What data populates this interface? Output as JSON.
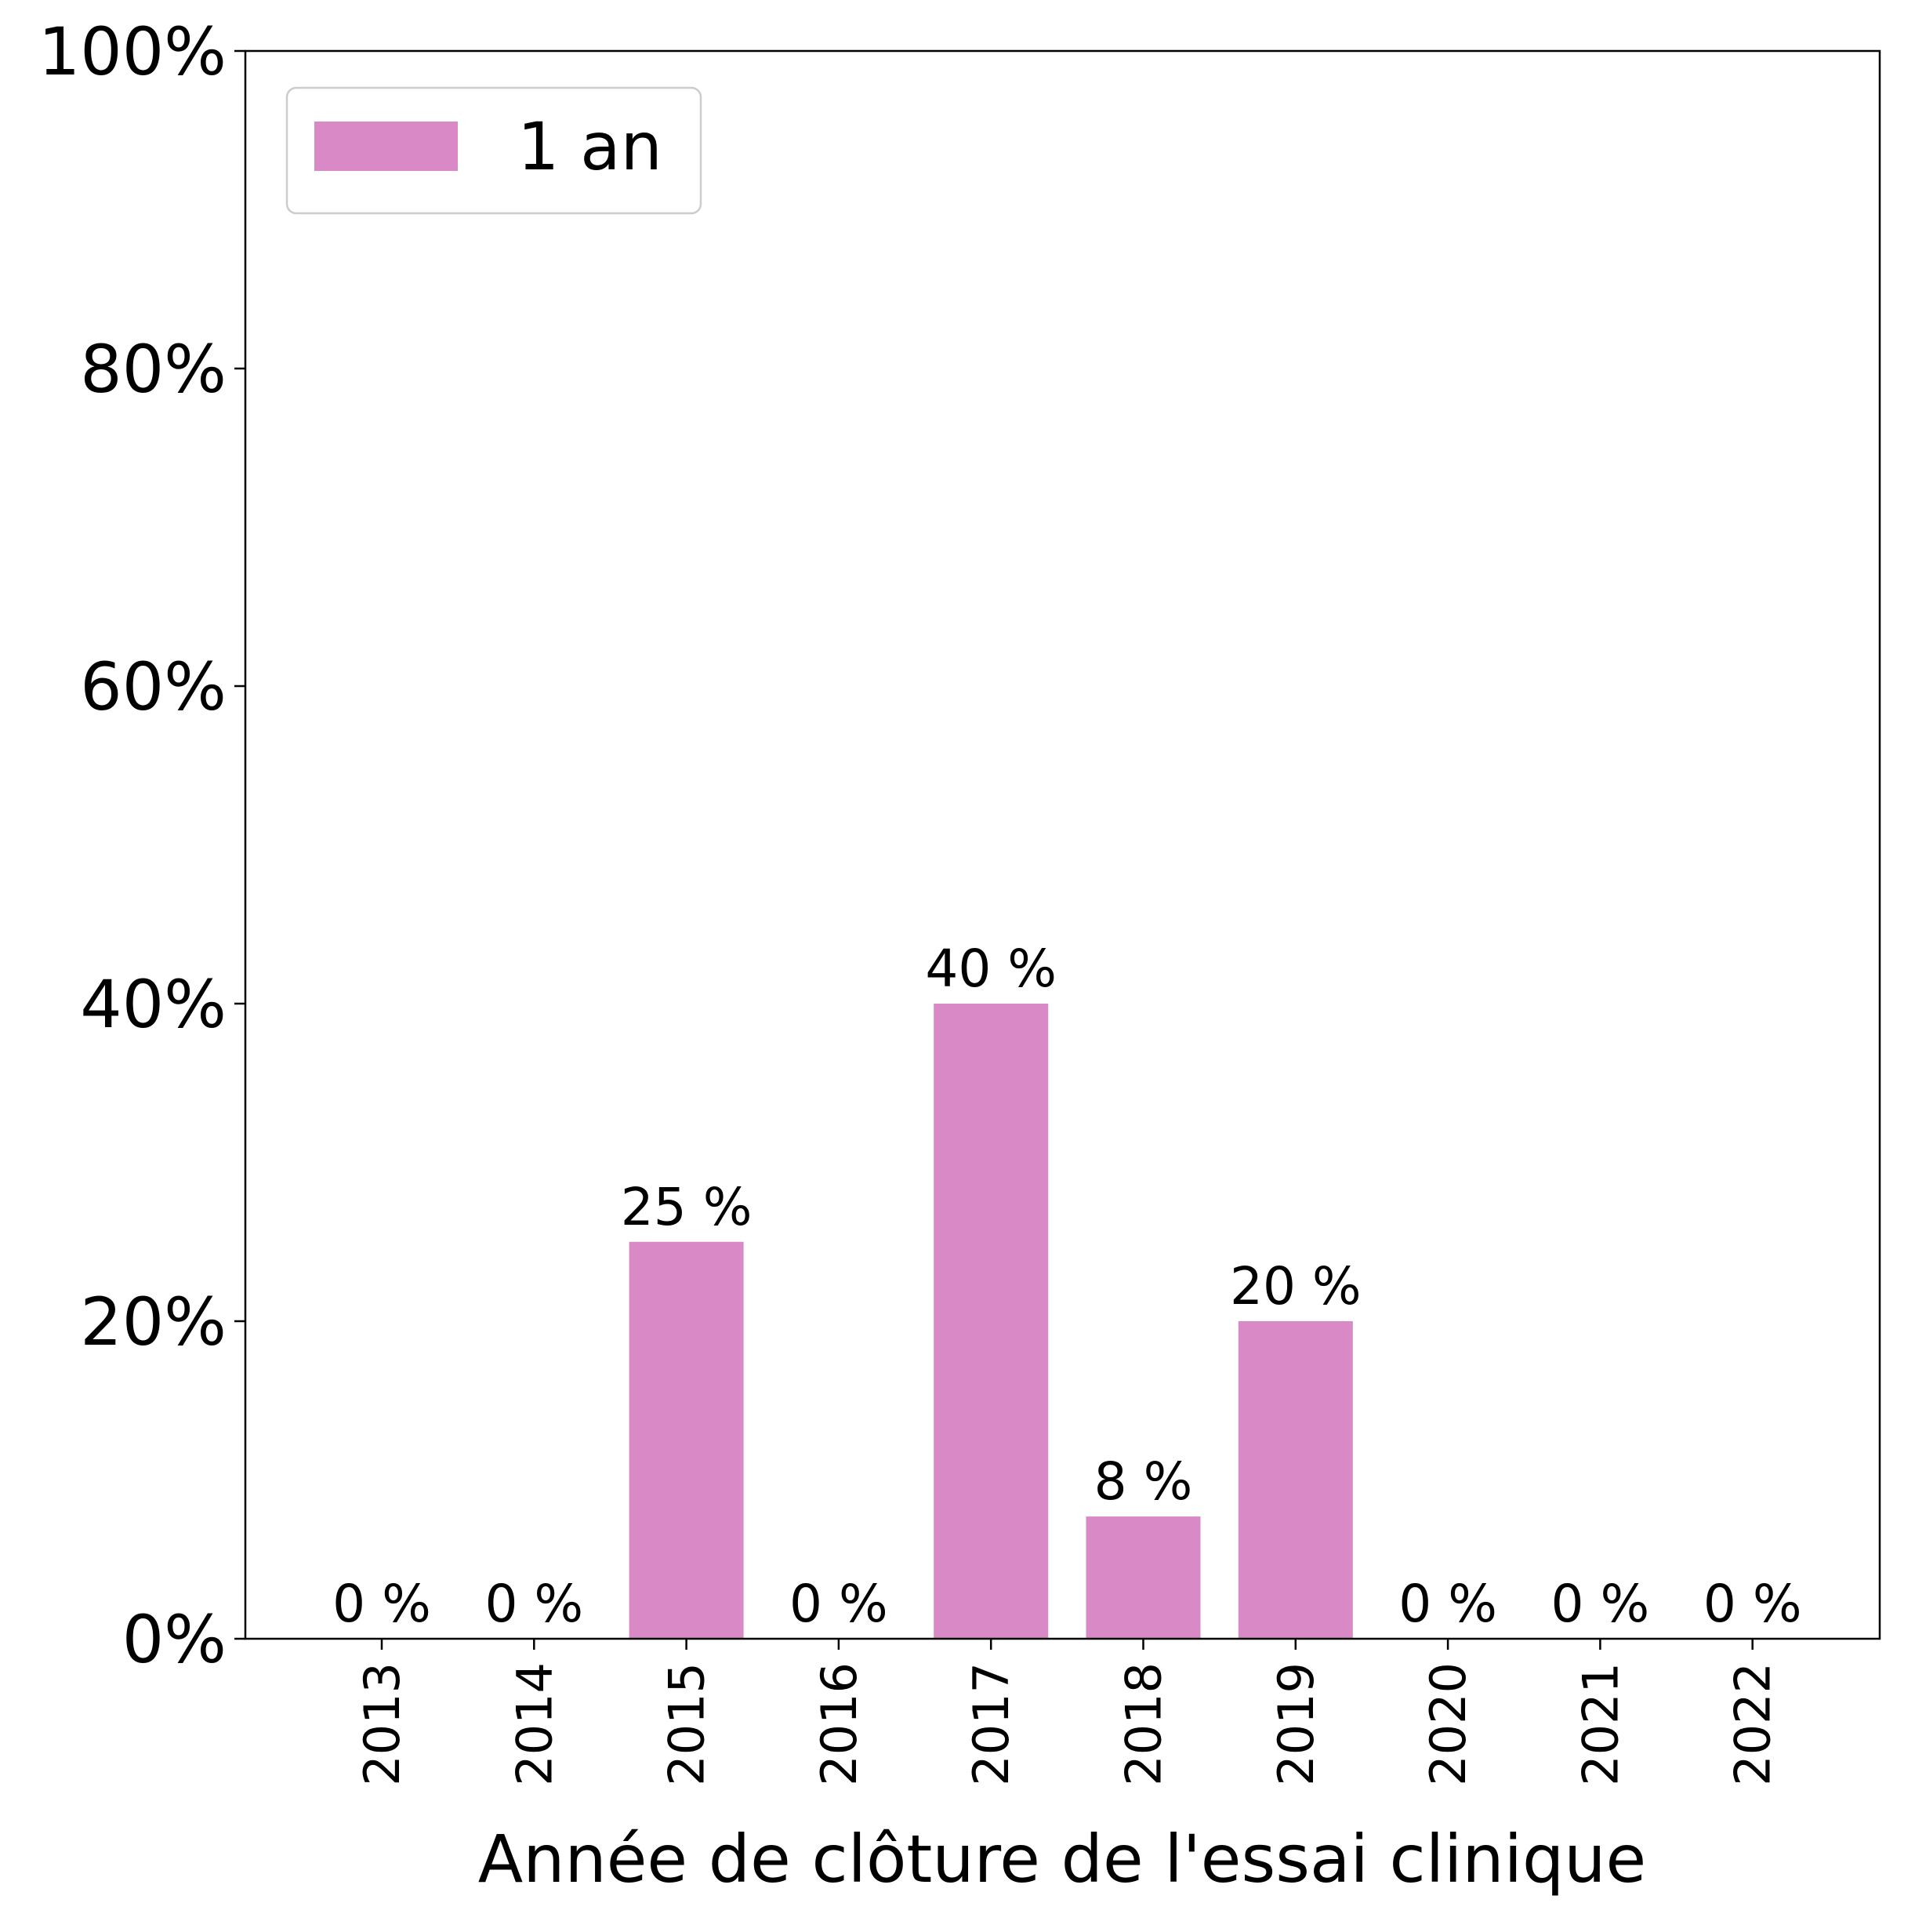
{
  "chart_data": {
    "type": "bar",
    "categories": [
      "2013",
      "2014",
      "2015",
      "2016",
      "2017",
      "2018",
      "2019",
      "2020",
      "2021",
      "2022"
    ],
    "series": [
      {
        "name": "1 an",
        "color": "#da89c7",
        "values": [
          0,
          0,
          25,
          0,
          40,
          7.7,
          20,
          0,
          0,
          0
        ],
        "labels": [
          "0 %",
          "0 %",
          "25 %",
          "0 %",
          "40 %",
          "8 %",
          "20 %",
          "0 %",
          "0 %",
          "0 %"
        ]
      }
    ],
    "title": "",
    "xlabel": "Année de clôture de l'essai clinique",
    "ylabel": "",
    "ylim": [
      0,
      100
    ],
    "yticks": [
      0,
      20,
      40,
      60,
      80,
      100
    ],
    "ytick_labels": [
      "0%",
      "20%",
      "40%",
      "60%",
      "80%",
      "100%"
    ],
    "grid": false,
    "legend_position": "top-left"
  }
}
